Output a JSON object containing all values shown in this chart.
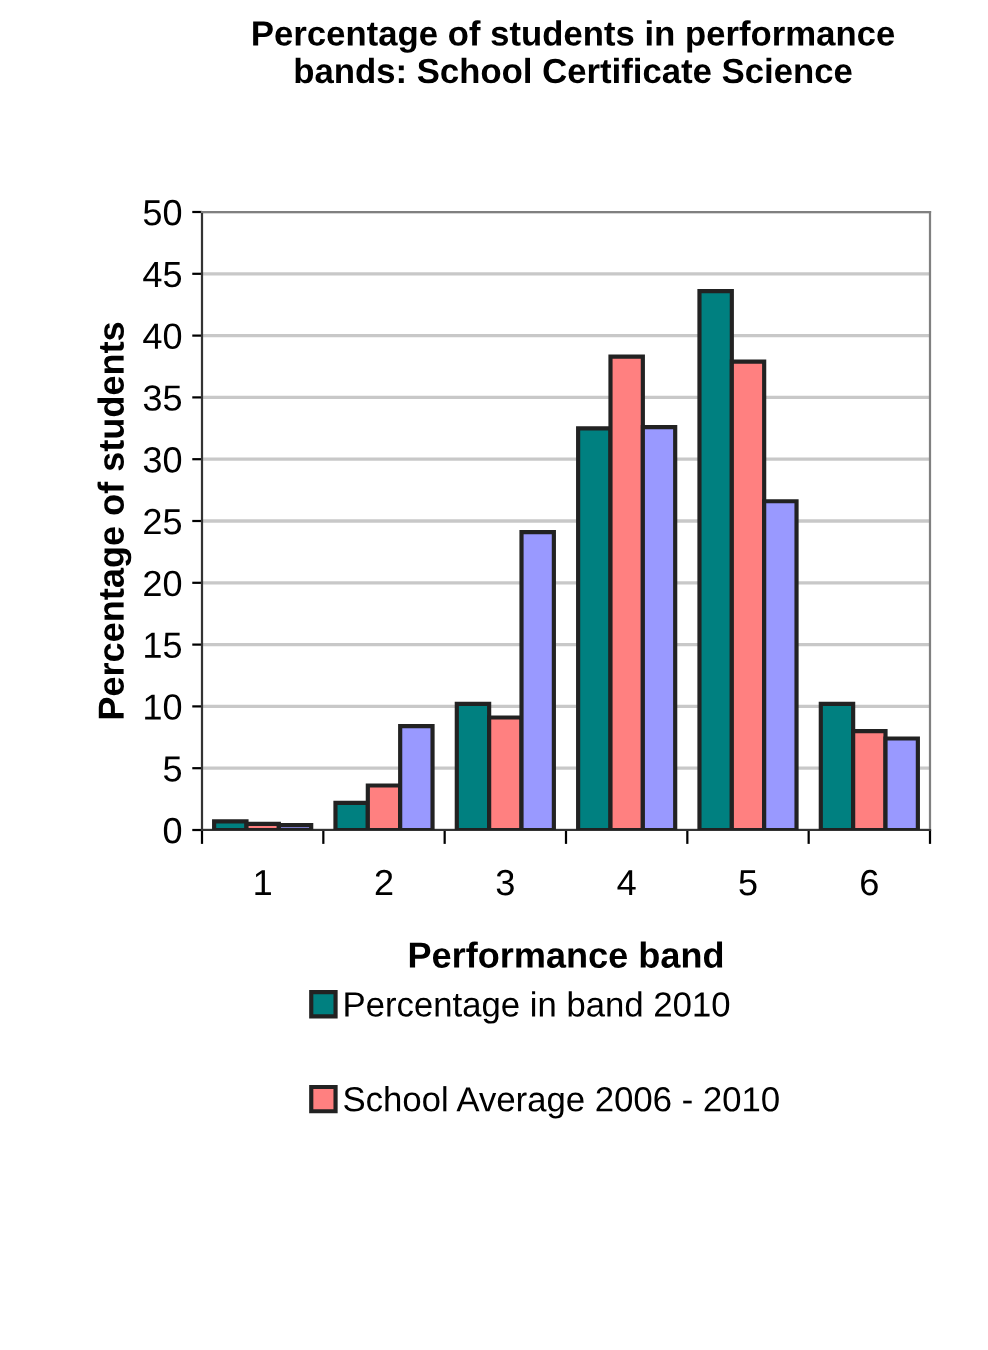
{
  "chart_data": {
    "type": "bar",
    "title": "Percentage of students in performance bands: School Certificate Science",
    "xlabel": "Performance band",
    "ylabel": "Percentage of students",
    "categories": [
      "1",
      "2",
      "3",
      "4",
      "5",
      "6"
    ],
    "series": [
      {
        "name": "Percentage in band 2010",
        "color": "#008080",
        "values": [
          0.7,
          2.2,
          10.2,
          32.5,
          43.6,
          10.2
        ]
      },
      {
        "name": "School Average 2006 - 2010",
        "color": "#ff8080",
        "values": [
          0.5,
          3.6,
          9.1,
          38.3,
          37.9,
          8.0
        ]
      },
      {
        "color": "#9999ff",
        "values": [
          0.4,
          8.4,
          24.1,
          32.6,
          26.6,
          7.4
        ]
      }
    ],
    "ylim": [
      0,
      50
    ],
    "yticks": [
      0,
      5,
      10,
      15,
      20,
      25,
      30,
      35,
      40,
      45,
      50
    ],
    "grid": "y",
    "legend": "bottom"
  }
}
